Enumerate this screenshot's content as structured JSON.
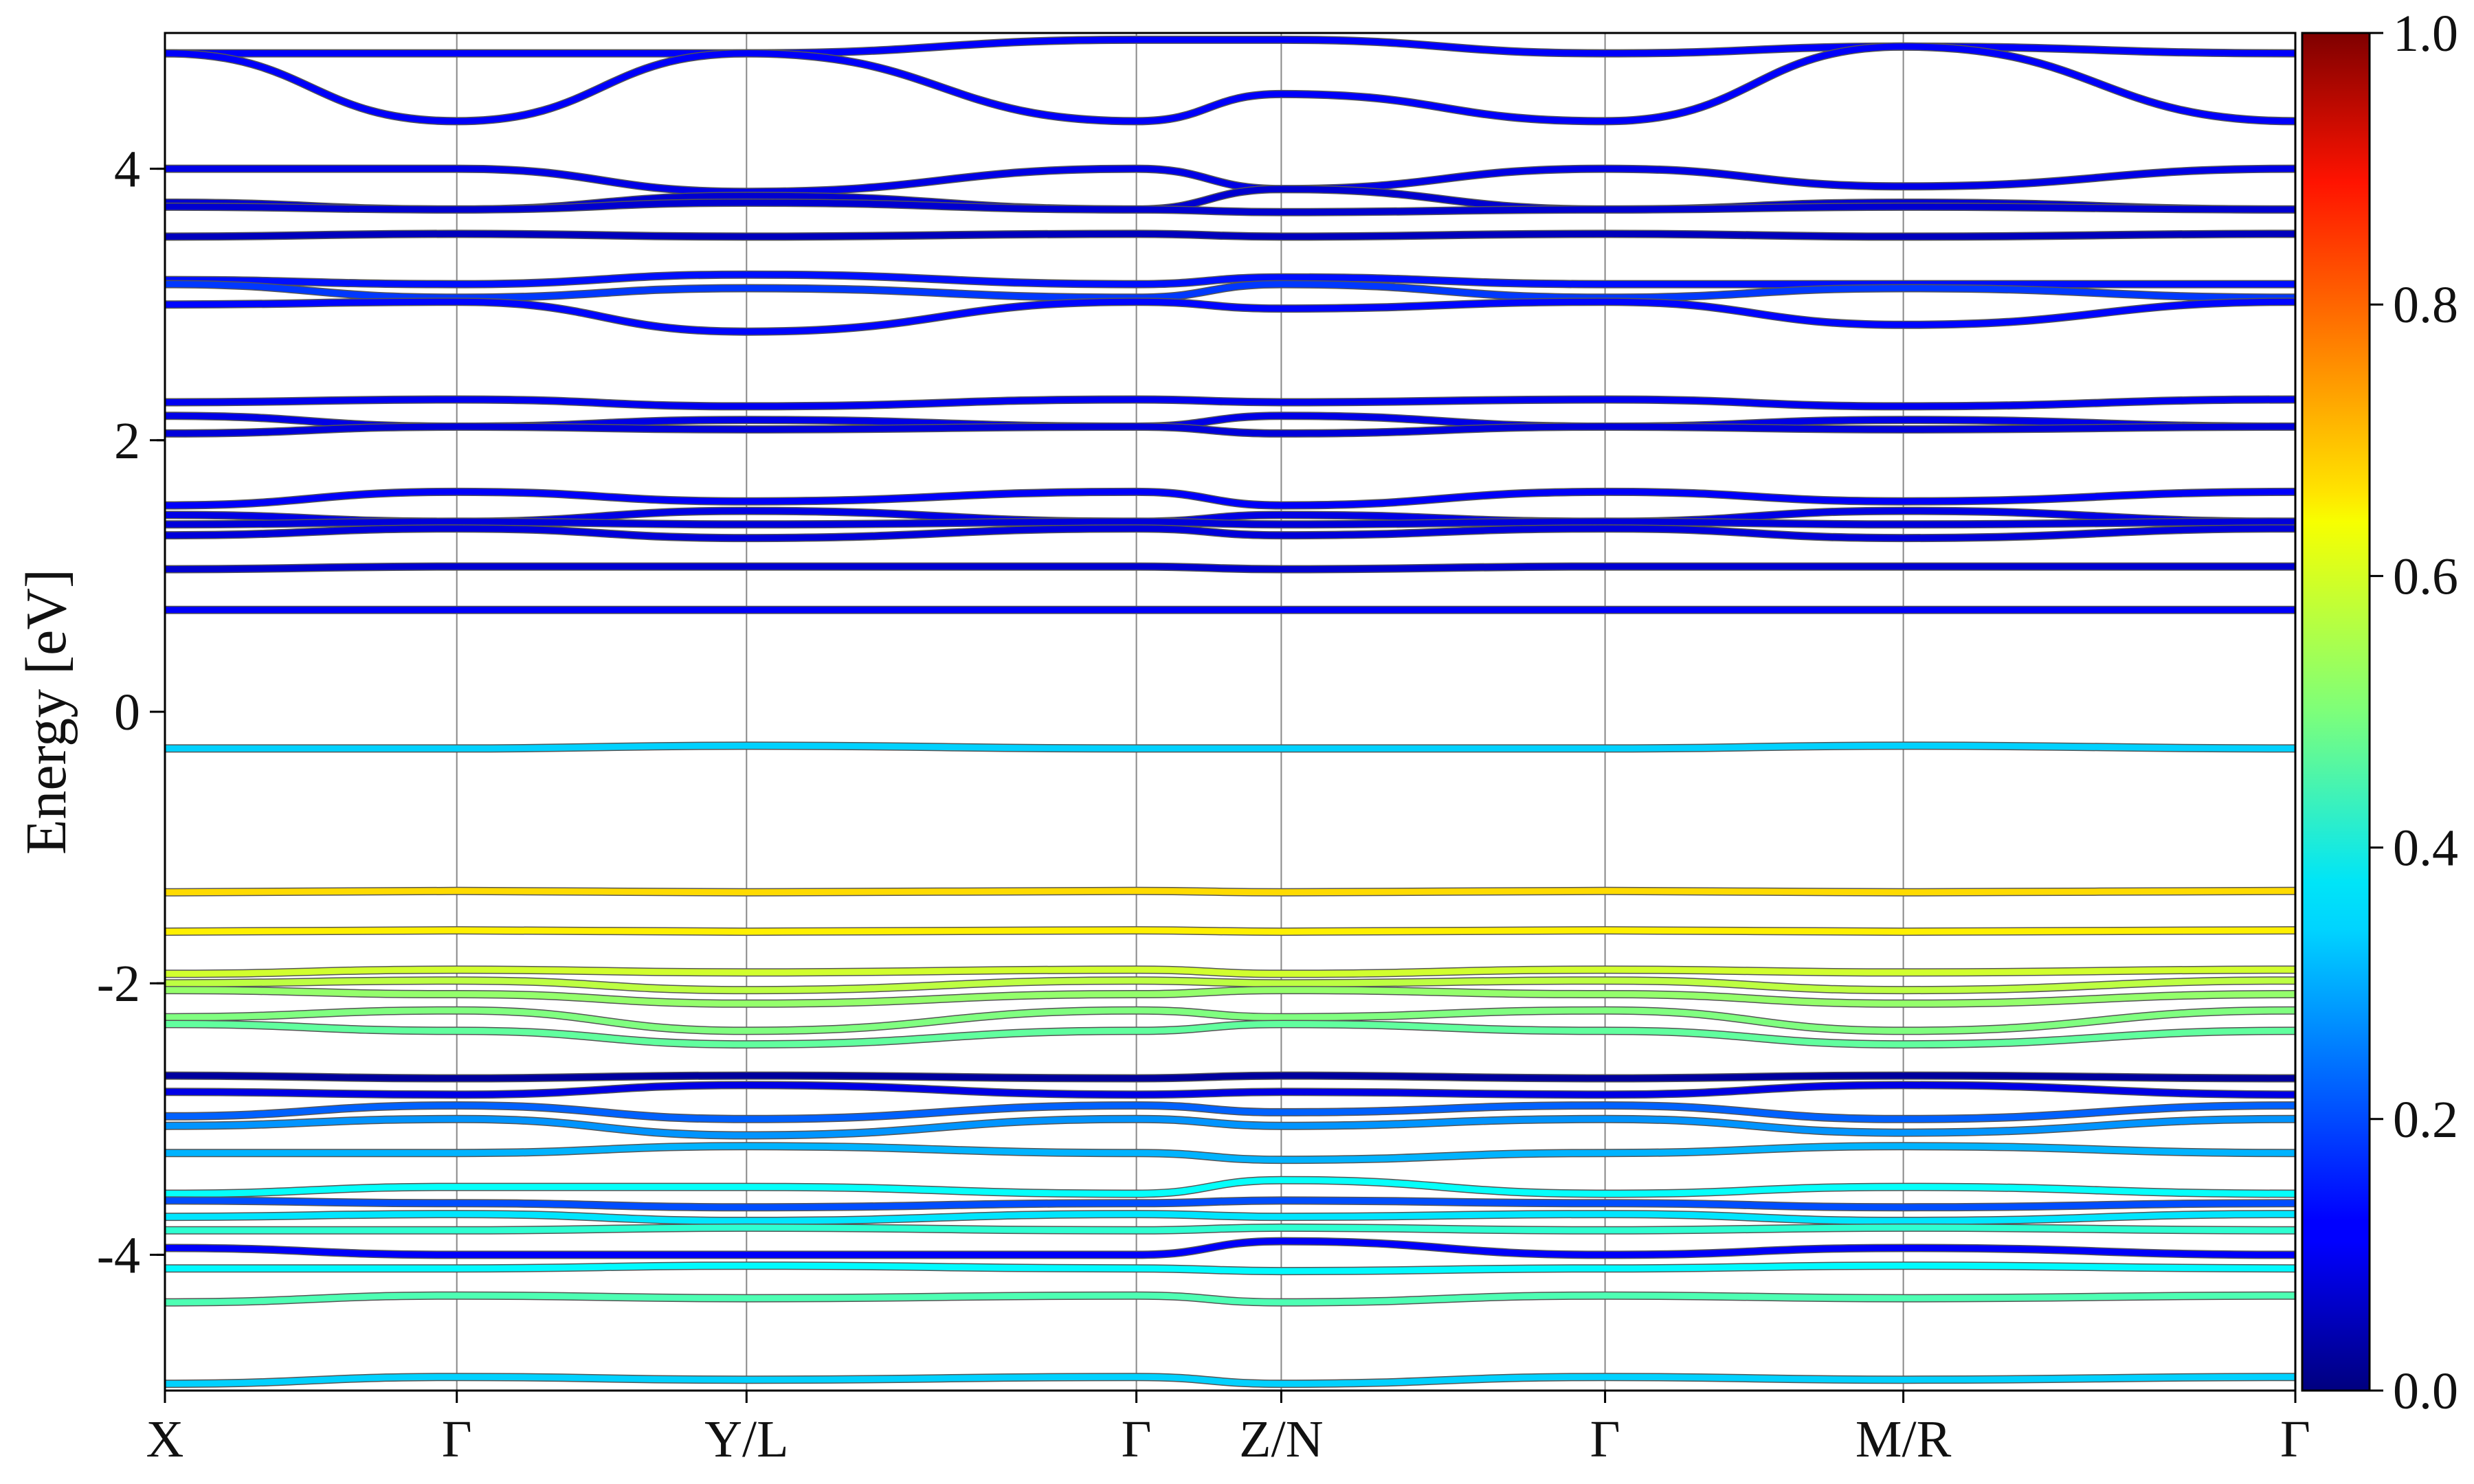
{
  "chart_data": {
    "type": "line",
    "title": "",
    "xlabel": "",
    "ylabel": "Energy [eV]",
    "ylim": [
      -5,
      5
    ],
    "yticks": [
      -4,
      -2,
      0,
      2,
      4
    ],
    "yticklabels": [
      "-4",
      "-2",
      "0",
      "2",
      "4"
    ],
    "kpath": {
      "positions": [
        0,
        0.137,
        0.273,
        0.456,
        0.524,
        0.676,
        0.816,
        1.0
      ],
      "labels": [
        "X",
        "Γ",
        "Y/L",
        "Γ",
        "Z/N",
        "Γ",
        "M/R",
        "Γ"
      ]
    },
    "colorbar": {
      "min": 0.0,
      "max": 1.0,
      "ticks": [
        0.0,
        0.2,
        0.4,
        0.6,
        0.8,
        1.0
      ],
      "ticklabels": [
        "0.0",
        "0.2",
        "0.4",
        "0.6",
        "0.8",
        "1.0"
      ],
      "colormap": "jet"
    },
    "bands": [
      {
        "e": [
          4.85,
          4.85,
          4.85,
          4.95,
          4.95,
          4.85,
          4.9,
          4.85
        ],
        "w": 0.12
      },
      {
        "e": [
          4.85,
          4.35,
          4.85,
          4.35,
          4.55,
          4.35,
          4.9,
          4.35
        ],
        "w": 0.12
      },
      {
        "e": [
          4.0,
          4.0,
          3.83,
          4.0,
          3.85,
          4.0,
          3.87,
          4.0
        ],
        "w": 0.1
      },
      {
        "e": [
          3.75,
          3.7,
          3.8,
          3.7,
          3.85,
          3.7,
          3.75,
          3.7
        ],
        "w": 0.08
      },
      {
        "e": [
          3.72,
          3.7,
          3.75,
          3.7,
          3.68,
          3.7,
          3.72,
          3.7
        ],
        "w": 0.08
      },
      {
        "e": [
          3.5,
          3.52,
          3.5,
          3.52,
          3.5,
          3.52,
          3.5,
          3.52
        ],
        "w": 0.06
      },
      {
        "e": [
          3.18,
          3.15,
          3.22,
          3.15,
          3.2,
          3.15,
          3.15,
          3.15
        ],
        "w": 0.14
      },
      {
        "e": [
          3.15,
          3.05,
          3.12,
          3.05,
          3.15,
          3.05,
          3.12,
          3.05
        ],
        "w": 0.18
      },
      {
        "e": [
          3.0,
          3.02,
          2.8,
          3.02,
          2.97,
          3.02,
          2.85,
          3.02
        ],
        "w": 0.13
      },
      {
        "e": [
          2.28,
          2.3,
          2.25,
          2.3,
          2.28,
          2.3,
          2.25,
          2.3
        ],
        "w": 0.11
      },
      {
        "e": [
          2.18,
          2.1,
          2.15,
          2.1,
          2.18,
          2.1,
          2.15,
          2.1
        ],
        "w": 0.1
      },
      {
        "e": [
          2.05,
          2.1,
          2.08,
          2.1,
          2.05,
          2.1,
          2.08,
          2.1
        ],
        "w": 0.09
      },
      {
        "e": [
          1.52,
          1.62,
          1.55,
          1.62,
          1.52,
          1.62,
          1.55,
          1.62
        ],
        "w": 0.12
      },
      {
        "e": [
          1.45,
          1.4,
          1.48,
          1.4,
          1.45,
          1.4,
          1.48,
          1.4
        ],
        "w": 0.1
      },
      {
        "e": [
          1.38,
          1.4,
          1.38,
          1.4,
          1.38,
          1.4,
          1.38,
          1.4
        ],
        "w": 0.09
      },
      {
        "e": [
          1.3,
          1.35,
          1.28,
          1.35,
          1.3,
          1.35,
          1.28,
          1.35
        ],
        "w": 0.09
      },
      {
        "e": [
          1.05,
          1.07,
          1.07,
          1.07,
          1.05,
          1.07,
          1.07,
          1.07
        ],
        "w": 0.08
      },
      {
        "e": [
          0.75,
          0.75,
          0.75,
          0.75,
          0.75,
          0.75,
          0.75,
          0.75
        ],
        "w": 0.12
      },
      {
        "e": [
          -0.27,
          -0.27,
          -0.25,
          -0.27,
          -0.27,
          -0.27,
          -0.25,
          -0.27
        ],
        "w": 0.33
      },
      {
        "e": [
          -1.33,
          -1.32,
          -1.33,
          -1.32,
          -1.33,
          -1.32,
          -1.33,
          -1.32
        ],
        "w": 0.66
      },
      {
        "e": [
          -1.62,
          -1.61,
          -1.62,
          -1.61,
          -1.62,
          -1.61,
          -1.62,
          -1.61
        ],
        "w": 0.64
      },
      {
        "e": [
          -1.93,
          -1.9,
          -1.92,
          -1.9,
          -1.93,
          -1.9,
          -1.92,
          -1.9
        ],
        "w": 0.58
      },
      {
        "e": [
          -2.0,
          -1.98,
          -2.05,
          -1.98,
          -2.0,
          -1.98,
          -2.05,
          -1.98
        ],
        "w": 0.56
      },
      {
        "e": [
          -2.05,
          -2.08,
          -2.15,
          -2.08,
          -2.05,
          -2.08,
          -2.15,
          -2.08
        ],
        "w": 0.52
      },
      {
        "e": [
          -2.25,
          -2.2,
          -2.35,
          -2.2,
          -2.25,
          -2.2,
          -2.35,
          -2.2
        ],
        "w": 0.5
      },
      {
        "e": [
          -2.3,
          -2.35,
          -2.45,
          -2.35,
          -2.3,
          -2.35,
          -2.45,
          -2.35
        ],
        "w": 0.47
      },
      {
        "e": [
          -2.68,
          -2.7,
          -2.68,
          -2.7,
          -2.68,
          -2.7,
          -2.68,
          -2.7
        ],
        "w": 0.03
      },
      {
        "e": [
          -2.8,
          -2.82,
          -2.75,
          -2.82,
          -2.8,
          -2.82,
          -2.75,
          -2.82
        ],
        "w": 0.1
      },
      {
        "e": [
          -2.98,
          -2.9,
          -3.0,
          -2.9,
          -2.95,
          -2.9,
          -3.0,
          -2.9
        ],
        "w": 0.22
      },
      {
        "e": [
          -3.05,
          -3.0,
          -3.12,
          -3.0,
          -3.05,
          -3.0,
          -3.1,
          -3.0
        ],
        "w": 0.27
      },
      {
        "e": [
          -3.25,
          -3.25,
          -3.2,
          -3.25,
          -3.3,
          -3.25,
          -3.2,
          -3.25
        ],
        "w": 0.3
      },
      {
        "e": [
          -3.55,
          -3.5,
          -3.5,
          -3.55,
          -3.45,
          -3.55,
          -3.5,
          -3.55
        ],
        "w": 0.38
      },
      {
        "e": [
          -3.6,
          -3.62,
          -3.65,
          -3.62,
          -3.6,
          -3.62,
          -3.65,
          -3.62
        ],
        "w": 0.2
      },
      {
        "e": [
          -3.72,
          -3.7,
          -3.75,
          -3.7,
          -3.72,
          -3.7,
          -3.75,
          -3.7
        ],
        "w": 0.35
      },
      {
        "e": [
          -3.82,
          -3.82,
          -3.8,
          -3.82,
          -3.8,
          -3.82,
          -3.8,
          -3.82
        ],
        "w": 0.42
      },
      {
        "e": [
          -3.95,
          -4.0,
          -4.0,
          -4.0,
          -3.9,
          -4.0,
          -3.95,
          -4.0
        ],
        "w": 0.12
      },
      {
        "e": [
          -4.1,
          -4.1,
          -4.08,
          -4.1,
          -4.12,
          -4.1,
          -4.08,
          -4.1
        ],
        "w": 0.37
      },
      {
        "e": [
          -4.35,
          -4.3,
          -4.32,
          -4.3,
          -4.35,
          -4.3,
          -4.32,
          -4.3
        ],
        "w": 0.45
      },
      {
        "e": [
          -4.95,
          -4.9,
          -4.92,
          -4.9,
          -4.95,
          -4.9,
          -4.92,
          -4.9
        ],
        "w": 0.33
      }
    ]
  }
}
